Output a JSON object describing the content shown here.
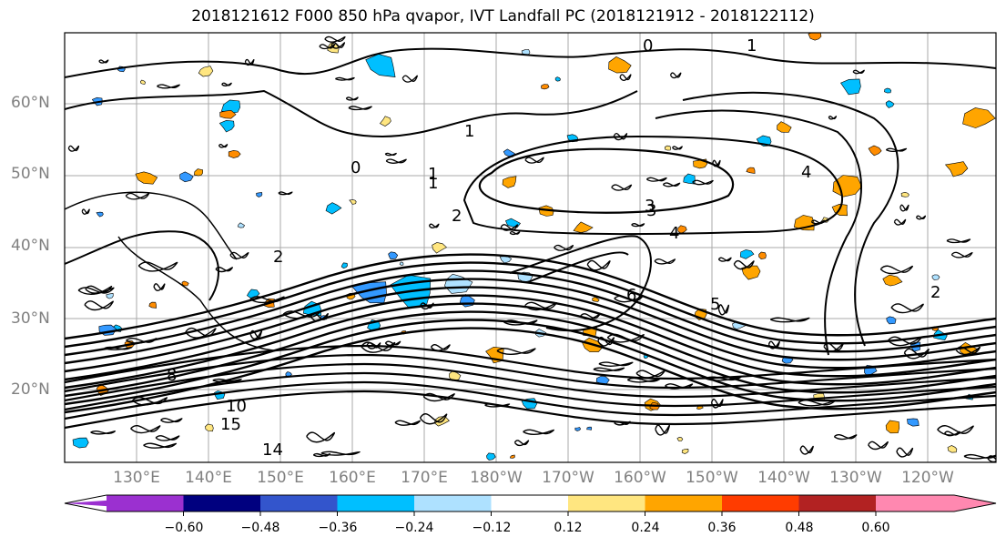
{
  "title": "2018121612 F000 850 hPa qvapor, IVT Landfall PC (2018121912 - 2018122112)",
  "lat_labels": [
    "60°N",
    "50°N",
    "40°N",
    "30°N",
    "20°N"
  ],
  "lon_labels": [
    "130°E",
    "140°E",
    "150°E",
    "160°E",
    "170°E",
    "180°W",
    "170°W",
    "160°W",
    "150°W",
    "140°W",
    "130°W",
    "120°W"
  ],
  "colorbar": {
    "colors": [
      "#9b30d0",
      "#00007f",
      "#3355cc",
      "#00bfff",
      "#aee1ff",
      "#ffffff",
      "#ffe680",
      "#ffa500",
      "#ff3c00",
      "#b22222",
      "#ff88b0"
    ],
    "ticks": [
      "−0.60",
      "−0.48",
      "−0.36",
      "−0.24",
      "−0.12",
      "0.12",
      "0.24",
      "0.36",
      "0.48",
      "0.60"
    ]
  },
  "contour_labels": [
    "0",
    "0",
    "1",
    "1",
    "1",
    "2",
    "2",
    "3",
    "3",
    "4",
    "4",
    "5",
    "6",
    "15",
    "14",
    "10",
    "1",
    "2",
    "8"
  ]
}
